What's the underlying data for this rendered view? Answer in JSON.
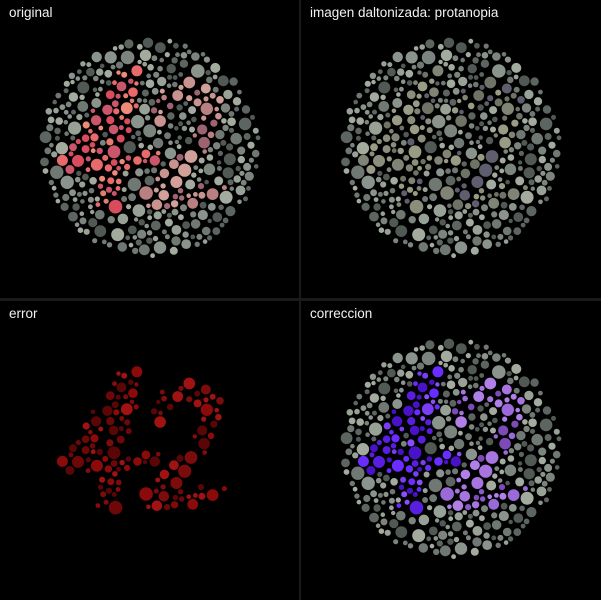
{
  "panels": [
    {
      "id": "original",
      "label": "original",
      "mode": "original"
    },
    {
      "id": "protanopia",
      "label": "imagen daltonizada: protanopia",
      "mode": "protanopia"
    },
    {
      "id": "error",
      "label": "error",
      "mode": "error"
    },
    {
      "id": "correction",
      "label": "correccion",
      "mode": "correction"
    }
  ],
  "plate_number": "42",
  "colors": {
    "background": "#000000",
    "divider": "#1a1a1a",
    "label_text": "#f2f2f2",
    "grey_dots": [
      "#6f7872",
      "#5d6561",
      "#8a938c",
      "#7b857e",
      "#a3ab9f",
      "#515955",
      "#98a196"
    ],
    "original_four": [
      "#e86a6a",
      "#d84c5e",
      "#f08a78",
      "#c9566a",
      "#e47d6e"
    ],
    "original_two": [
      "#b88081",
      "#a86a78",
      "#c99390",
      "#9e6372",
      "#d1a199"
    ],
    "protan_digit": [
      "#7f8475",
      "#8b8e7a",
      "#6e7366",
      "#9a9b84",
      "#5f5e6e"
    ],
    "error_dots": [
      "#8b0a0a",
      "#6e0808",
      "#a11212",
      "#5a0606",
      "#7c0c0c"
    ],
    "correction_four": [
      "#6a2cff",
      "#5a1ee0",
      "#7b3cf5",
      "#4a12c8",
      "#8a4dff"
    ],
    "correction_two": [
      "#9a6ad8",
      "#8a5acb",
      "#b080e8",
      "#7c4bb8",
      "#a874e0"
    ]
  }
}
